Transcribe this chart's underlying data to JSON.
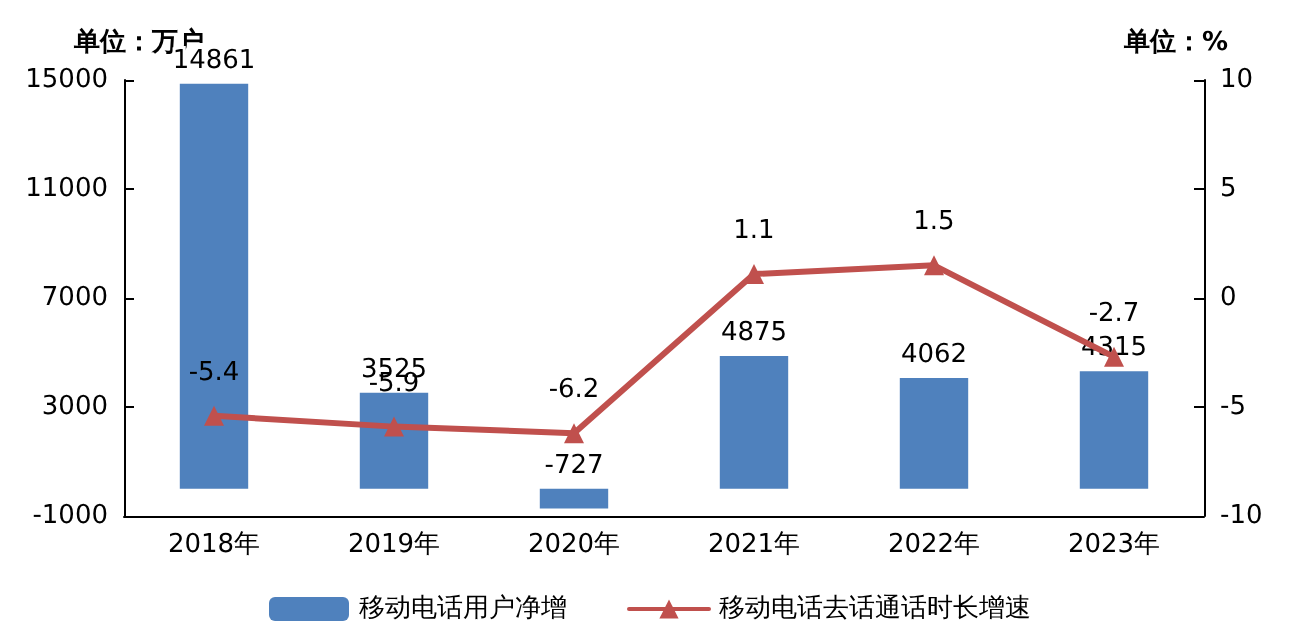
{
  "chart_data": {
    "type": "bar",
    "categories": [
      "2018年",
      "2019年",
      "2020年",
      "2021年",
      "2022年",
      "2023年"
    ],
    "series": [
      {
        "name": "移动电话用户净增",
        "color": "#4f81bd",
        "values": [
          14861,
          3525,
          -727,
          4875,
          4062,
          4315
        ]
      },
      {
        "name": "移动电话去话通话时长增速",
        "type": "line",
        "axis": "y2",
        "color": "#c0504d",
        "values": [
          -5.4,
          -5.9,
          -6.2,
          1.1,
          1.5,
          -2.7
        ]
      }
    ],
    "ylabel": "单位：万户",
    "y2label": "单位：%",
    "ylim": [
      -1000,
      15000
    ],
    "yticks": [
      -1000,
      3000,
      7000,
      11000,
      15000
    ],
    "y2lim": [
      -10,
      10
    ],
    "y2ticks": [
      -10,
      -5,
      0,
      5,
      10
    ],
    "data_labels": true,
    "grid": false,
    "legend": "bottom",
    "marker": "triangle",
    "line_style": "solid"
  }
}
